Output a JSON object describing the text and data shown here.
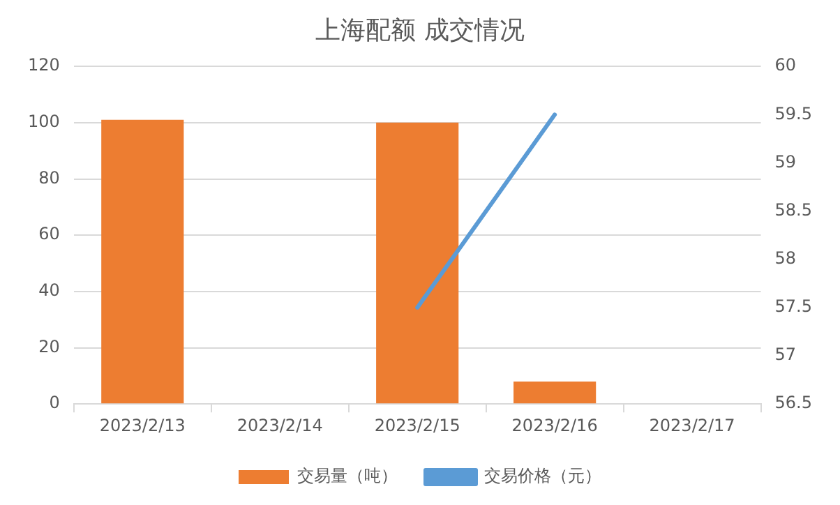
{
  "chart_data": {
    "type": "bar",
    "title": "上海配额 成交情况",
    "categories": [
      "2023/2/13",
      "2023/2/14",
      "2023/2/15",
      "2023/2/16",
      "2023/2/17"
    ],
    "series": [
      {
        "name": "交易量（吨）",
        "color": "#ed7d31",
        "values": [
          101,
          null,
          100,
          8,
          null
        ]
      },
      {
        "name": "交易价格（元）",
        "type": "line",
        "axis": "y2",
        "color": "#5b9bd5",
        "values": [
          null,
          null,
          57.5,
          59.5,
          null
        ]
      }
    ],
    "ylim": [
      0,
      120
    ],
    "yticks": [
      0,
      20,
      40,
      60,
      80,
      100,
      120
    ],
    "y2lim": [
      56.5,
      60
    ],
    "y2ticks": [
      56.5,
      57,
      57.5,
      58,
      58.5,
      59,
      59.5,
      60
    ],
    "grid": "y",
    "legend": "bottom",
    "marker": "none"
  }
}
